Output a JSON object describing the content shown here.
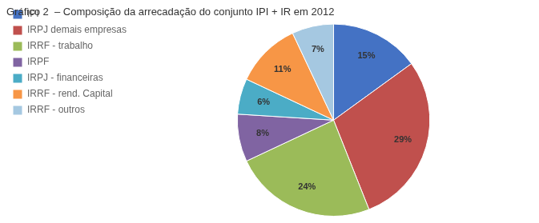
{
  "chart_data": {
    "type": "pie",
    "title": "Gráfico 2  – Composição da arrecadação do conjunto IPI + IR em 2012",
    "categories": [
      "IPI",
      "IRPJ demais empresas",
      "IRRF - trabalho",
      "IRPF",
      "IRPJ - financeiras",
      "IRRF - rend. Capital",
      "IRRF - outros"
    ],
    "values": [
      15,
      29,
      24,
      8,
      6,
      11,
      7
    ],
    "value_labels": [
      "15%",
      "29%",
      "24%",
      "8%",
      "6%",
      "11%",
      "7%"
    ],
    "colors": [
      "#4472C4",
      "#C0504D",
      "#9BBB59",
      "#8064A2",
      "#4BACC6",
      "#F79646",
      "#A5C8E1"
    ],
    "legend": "upper left",
    "data_labels": true
  }
}
